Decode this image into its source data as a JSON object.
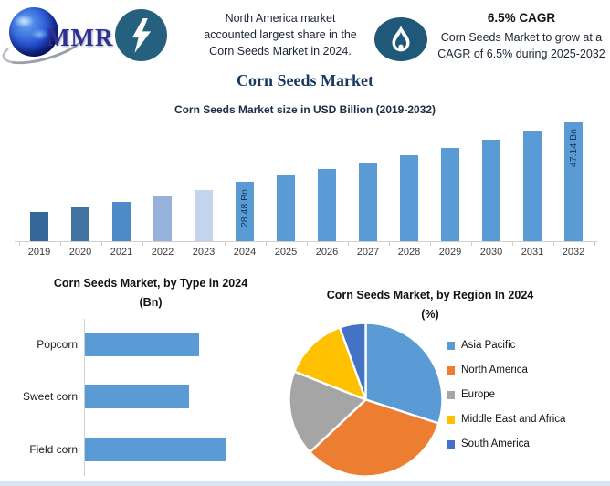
{
  "header": {
    "logo_text": "MMR",
    "icons": [
      "globe-icon",
      "lightning-icon",
      "flame-icon"
    ],
    "badge_colors": {
      "lightning_circle": "#26607f",
      "flame_circle": "#1f5878"
    },
    "left_note": {
      "lines": [
        "North America market",
        "accounted largest share in the",
        "Corn Seeds Market in 2024."
      ]
    },
    "right_note": {
      "title": "6.5% CAGR",
      "lines": [
        "Corn Seeds Market to grow at a",
        "CAGR of 6.5% during 2025-2032"
      ]
    }
  },
  "page_title": "Corn Seeds Market",
  "chart_data": [
    {
      "type": "bar",
      "title": "Corn Seeds Market size in USD Billion (2019-2032)",
      "unit": "USD Billion",
      "categories": [
        "2019",
        "2020",
        "2021",
        "2022",
        "2023",
        "2024",
        "2025",
        "2026",
        "2027",
        "2028",
        "2029",
        "2030",
        "2031",
        "2032"
      ],
      "values": [
        19.0,
        20.5,
        22.1,
        24.0,
        26.0,
        28.48,
        30.33,
        32.3,
        34.4,
        36.64,
        39.02,
        41.56,
        44.26,
        47.14
      ],
      "values_estimated_except_labeled": true,
      "data_labels": {
        "2024": "28.48 Bn",
        "2032": "47.14 Bn"
      },
      "bar_colors": [
        "#35689a",
        "#3f74a5",
        "#4e8ac7",
        "#96b1da",
        "#c2d4ee",
        "#5b9bd5",
        "#5b9bd5",
        "#5b9bd5",
        "#5b9bd5",
        "#5b9bd5",
        "#5b9bd5",
        "#5b9bd5",
        "#5b9bd5",
        "#5b9bd5"
      ],
      "grid": false,
      "legend": false
    },
    {
      "type": "bar",
      "orientation": "horizontal",
      "title": "Corn Seeds Market, by Type in 2024",
      "subtitle": "(Bn)",
      "categories": [
        "Popcorn",
        "Sweet corn",
        "Field corn"
      ],
      "relative_values": [
        0.81,
        0.74,
        1.0
      ],
      "values_labeled": false,
      "bar_color": "#5b9bd5",
      "grid": false,
      "legend": false
    },
    {
      "type": "pie",
      "title": "Corn Seeds Market, by Region In 2024",
      "subtitle": "(%)",
      "labels": [
        "Asia Pacific",
        "North America",
        "Europe",
        "Middle East and Africa",
        "South America"
      ],
      "values": [
        30,
        33,
        18,
        13.5,
        5.5
      ],
      "values_estimated": true,
      "colors": [
        "#5b9bd5",
        "#ed7d31",
        "#a5a5a5",
        "#ffc000",
        "#4472c4"
      ],
      "legend_position": "right",
      "start_angle_deg": 0,
      "direction": "clockwise"
    }
  ]
}
